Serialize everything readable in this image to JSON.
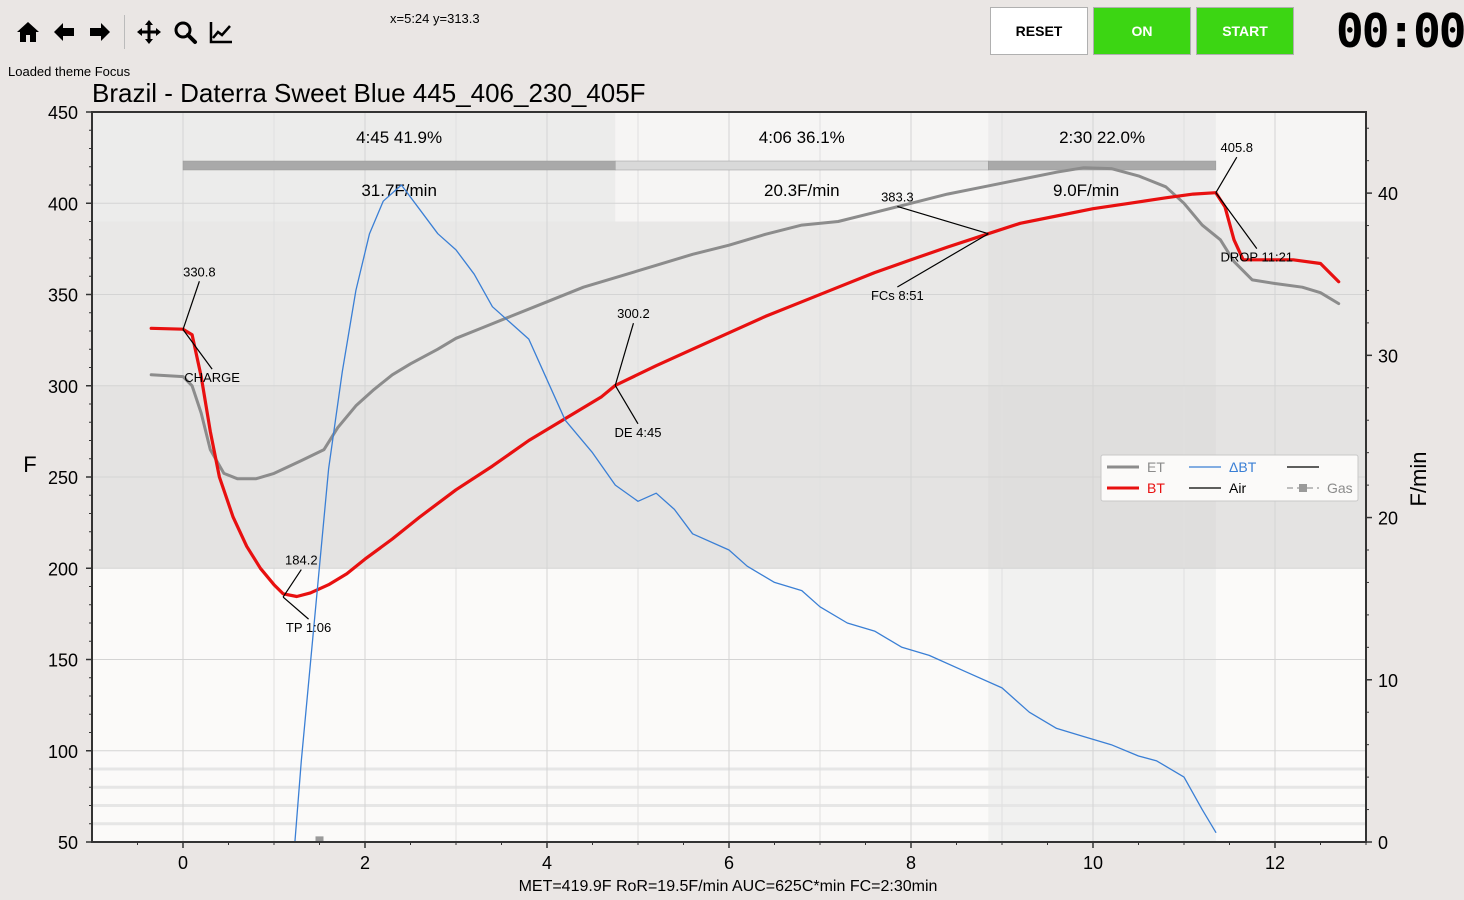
{
  "toolbar": {
    "icons": [
      "home-icon",
      "back-arrow-icon",
      "forward-arrow-icon",
      "pan-icon",
      "zoom-icon",
      "chart-line-icon"
    ]
  },
  "coords_readout": "x=5:24  y=313.3",
  "status_message": "Loaded theme Focus",
  "controls": {
    "reset": "RESET",
    "on": "ON",
    "start": "START"
  },
  "timer": "00:00",
  "colors": {
    "et": "#8c8c8c",
    "bt": "#e81010",
    "delta_bt": "#3a7fd5",
    "air": "#000000",
    "gas": "#9a9a9a",
    "button_green": "#3cd613"
  },
  "chart_data": {
    "type": "line",
    "title": "Brazil - Daterra Sweet Blue 445_406_230_405F",
    "xlabel": "",
    "ylabel": "F",
    "y2label": "F/min",
    "xlim": [
      -1,
      13
    ],
    "ylim": [
      50,
      450
    ],
    "y2lim": [
      0,
      45
    ],
    "xticks": [
      0,
      2,
      4,
      6,
      8,
      10,
      12
    ],
    "yticks": [
      50,
      100,
      150,
      200,
      250,
      300,
      350,
      400,
      450
    ],
    "y2ticks": [
      0,
      10,
      20,
      30,
      40
    ],
    "grid": true,
    "legend_position": "right",
    "series": [
      {
        "name": "ET",
        "axis": "left",
        "points": [
          [
            -0.35,
            306
          ],
          [
            0,
            305
          ],
          [
            0.1,
            300
          ],
          [
            0.2,
            285
          ],
          [
            0.3,
            265
          ],
          [
            0.45,
            252
          ],
          [
            0.6,
            249
          ],
          [
            0.8,
            249
          ],
          [
            1.0,
            252
          ],
          [
            1.3,
            259
          ],
          [
            1.55,
            265
          ],
          [
            1.7,
            277
          ],
          [
            1.9,
            289
          ],
          [
            2.1,
            298
          ],
          [
            2.3,
            306
          ],
          [
            2.5,
            312
          ],
          [
            2.8,
            320
          ],
          [
            3.0,
            326
          ],
          [
            3.3,
            332
          ],
          [
            3.6,
            338
          ],
          [
            4.0,
            346
          ],
          [
            4.4,
            354
          ],
          [
            4.8,
            360
          ],
          [
            5.2,
            366
          ],
          [
            5.6,
            372
          ],
          [
            6.0,
            377
          ],
          [
            6.4,
            383
          ],
          [
            6.8,
            388
          ],
          [
            7.2,
            390
          ],
          [
            7.6,
            395
          ],
          [
            8.0,
            400
          ],
          [
            8.4,
            405
          ],
          [
            8.8,
            409
          ],
          [
            9.2,
            413
          ],
          [
            9.6,
            417
          ],
          [
            9.9,
            419.5
          ],
          [
            10.2,
            419
          ],
          [
            10.5,
            415
          ],
          [
            10.8,
            409
          ],
          [
            11.0,
            400
          ],
          [
            11.2,
            388
          ],
          [
            11.4,
            380
          ],
          [
            11.55,
            368
          ],
          [
            11.75,
            358
          ],
          [
            12.0,
            356
          ],
          [
            12.3,
            354
          ],
          [
            12.5,
            351
          ],
          [
            12.7,
            345
          ]
        ]
      },
      {
        "name": "BT",
        "axis": "left",
        "points": [
          [
            -0.35,
            331.5
          ],
          [
            0,
            331
          ],
          [
            0.1,
            328
          ],
          [
            0.2,
            305
          ],
          [
            0.3,
            275
          ],
          [
            0.4,
            250
          ],
          [
            0.55,
            228
          ],
          [
            0.7,
            212
          ],
          [
            0.85,
            200
          ],
          [
            1.0,
            191
          ],
          [
            1.1,
            186
          ],
          [
            1.25,
            184.5
          ],
          [
            1.4,
            186.5
          ],
          [
            1.6,
            191
          ],
          [
            1.8,
            197
          ],
          [
            2.0,
            205
          ],
          [
            2.3,
            216
          ],
          [
            2.6,
            228
          ],
          [
            3.0,
            243
          ],
          [
            3.4,
            256
          ],
          [
            3.8,
            270
          ],
          [
            4.2,
            282
          ],
          [
            4.6,
            294
          ],
          [
            4.75,
            300.2
          ],
          [
            5.2,
            311
          ],
          [
            5.6,
            320
          ],
          [
            6.0,
            329
          ],
          [
            6.4,
            338
          ],
          [
            6.8,
            346
          ],
          [
            7.2,
            354
          ],
          [
            7.6,
            362
          ],
          [
            8.0,
            369
          ],
          [
            8.4,
            376
          ],
          [
            8.85,
            383.3
          ],
          [
            9.2,
            389
          ],
          [
            9.6,
            393
          ],
          [
            10.0,
            397
          ],
          [
            10.4,
            400
          ],
          [
            10.8,
            403
          ],
          [
            11.1,
            405
          ],
          [
            11.35,
            405.8
          ],
          [
            11.45,
            398
          ],
          [
            11.55,
            380
          ],
          [
            11.65,
            369
          ],
          [
            11.9,
            369
          ],
          [
            12.2,
            369
          ],
          [
            12.5,
            367
          ],
          [
            12.6,
            362
          ],
          [
            12.7,
            357
          ]
        ]
      },
      {
        "name": "ΔBT",
        "axis": "right",
        "points": [
          [
            1.23,
            0
          ],
          [
            1.3,
            5
          ],
          [
            1.4,
            11
          ],
          [
            1.5,
            17
          ],
          [
            1.6,
            23
          ],
          [
            1.75,
            29
          ],
          [
            1.9,
            34
          ],
          [
            2.05,
            37.5
          ],
          [
            2.2,
            39.5
          ],
          [
            2.4,
            40.5
          ],
          [
            2.6,
            39
          ],
          [
            2.8,
            37.5
          ],
          [
            3.0,
            36.5
          ],
          [
            3.2,
            35
          ],
          [
            3.4,
            33
          ],
          [
            3.6,
            32
          ],
          [
            3.8,
            31
          ],
          [
            4.0,
            28.5
          ],
          [
            4.2,
            26
          ],
          [
            4.5,
            24
          ],
          [
            4.75,
            22
          ],
          [
            5.0,
            21
          ],
          [
            5.2,
            21.5
          ],
          [
            5.4,
            20.5
          ],
          [
            5.6,
            19
          ],
          [
            6.0,
            18
          ],
          [
            6.2,
            17
          ],
          [
            6.5,
            16
          ],
          [
            6.8,
            15.5
          ],
          [
            7.0,
            14.5
          ],
          [
            7.3,
            13.5
          ],
          [
            7.6,
            13
          ],
          [
            7.9,
            12
          ],
          [
            8.2,
            11.5
          ],
          [
            8.6,
            10.5
          ],
          [
            9.0,
            9.5
          ],
          [
            9.3,
            8
          ],
          [
            9.6,
            7
          ],
          [
            9.9,
            6.5
          ],
          [
            10.2,
            6
          ],
          [
            10.5,
            5.3
          ],
          [
            10.7,
            5
          ],
          [
            11.0,
            4
          ],
          [
            11.2,
            2
          ],
          [
            11.35,
            0.6
          ]
        ]
      },
      {
        "name": "Air",
        "axis": "right",
        "points": []
      },
      {
        "name": "Gas",
        "axis": "right",
        "points": [
          [
            1.5,
            0.1
          ]
        ]
      }
    ],
    "phases": [
      {
        "label": "4:45  41.9%",
        "ror": "31.7F/min",
        "start": 0,
        "end": 4.75
      },
      {
        "label": "4:06  36.1%",
        "ror": "20.3F/min",
        "start": 4.75,
        "end": 8.85
      },
      {
        "label": "2:30  22.0%",
        "ror": "9.0F/min",
        "start": 8.85,
        "end": 11.35
      }
    ],
    "annotations": [
      {
        "event": "CHARGE",
        "value": "330.8",
        "x": 0,
        "y": 330.8,
        "temp_pos": [
          0.18,
          360
        ],
        "event_pos": [
          0.32,
          302
        ]
      },
      {
        "event": "TP 1:06",
        "value": "184.2",
        "x": 1.1,
        "y": 184.2,
        "temp_pos": [
          1.3,
          202
        ],
        "event_pos": [
          1.38,
          165
        ]
      },
      {
        "event": "DE 4:45",
        "value": "300.2",
        "x": 4.75,
        "y": 300.2,
        "temp_pos": [
          4.95,
          337
        ],
        "event_pos": [
          5.0,
          272
        ]
      },
      {
        "event": "FCs 8:51",
        "value": "383.3",
        "x": 8.85,
        "y": 383.3,
        "temp_pos": [
          7.85,
          401
        ],
        "event_pos": [
          7.85,
          347
        ]
      },
      {
        "event": "DROP 11:21",
        "value": "405.8",
        "x": 11.35,
        "y": 405.8,
        "temp_pos": [
          11.58,
          428
        ],
        "event_pos": [
          11.8,
          368
        ]
      }
    ],
    "footer_stats": "MET=419.9F   RoR=19.5F/min   AUC=625C*min   FC=2:30min"
  }
}
